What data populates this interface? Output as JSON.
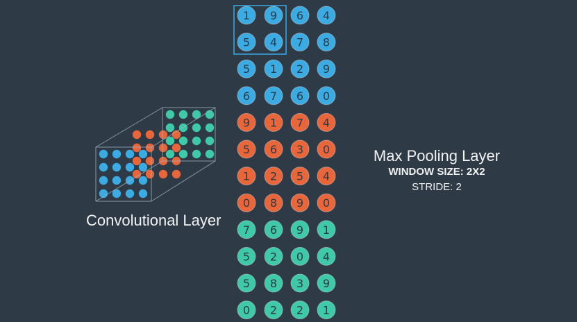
{
  "colors": {
    "background": "#2e3a46",
    "blue": "#3aabe3",
    "orange": "#e8663a",
    "teal": "#3ec9a9",
    "frame": "#9fb0c0",
    "window_box": "#3aabe3"
  },
  "grid": {
    "rows": [
      {
        "color": "blue",
        "values": [
          "1",
          "9",
          "6",
          "4"
        ]
      },
      {
        "color": "blue",
        "values": [
          "5",
          "4",
          "7",
          "8"
        ]
      },
      {
        "color": "blue",
        "values": [
          "5",
          "1",
          "2",
          "9"
        ]
      },
      {
        "color": "blue",
        "values": [
          "6",
          "7",
          "6",
          "0"
        ]
      },
      {
        "color": "orange",
        "values": [
          "9",
          "1",
          "7",
          "4"
        ]
      },
      {
        "color": "orange",
        "values": [
          "5",
          "6",
          "3",
          "0"
        ]
      },
      {
        "color": "orange",
        "values": [
          "1",
          "2",
          "5",
          "4"
        ]
      },
      {
        "color": "orange",
        "values": [
          "0",
          "8",
          "9",
          "0"
        ]
      },
      {
        "color": "teal",
        "values": [
          "7",
          "6",
          "9",
          "1"
        ]
      },
      {
        "color": "teal",
        "values": [
          "5",
          "2",
          "0",
          "4"
        ]
      },
      {
        "color": "teal",
        "values": [
          "5",
          "8",
          "3",
          "9"
        ]
      },
      {
        "color": "teal",
        "values": [
          "0",
          "2",
          "2",
          "1"
        ]
      }
    ]
  },
  "conv_layer": {
    "label": "Convolutional Layer",
    "layers": [
      "teal",
      "orange",
      "blue"
    ]
  },
  "pooling": {
    "title": "Max Pooling Layer",
    "window_size_label": "WINDOW SIZE:",
    "window_size_value": "2X2",
    "stride_text": "STRIDE: 2"
  }
}
